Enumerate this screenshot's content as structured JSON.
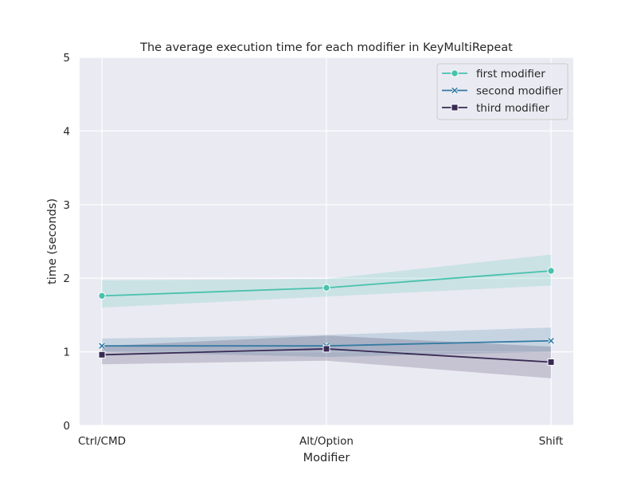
{
  "chart_data": {
    "type": "line",
    "title": "The average execution time for each modifier in KeyMultiRepeat",
    "xlabel": "Modifier",
    "ylabel": "time (seconds)",
    "categories": [
      "Ctrl/CMD",
      "Alt/Option",
      "Shift"
    ],
    "ylim": [
      0,
      5
    ],
    "yticks": [
      "0",
      "1",
      "2",
      "3",
      "4",
      "5"
    ],
    "grid": true,
    "legend_position": "top-right",
    "background": "#eaeaf2",
    "series": [
      {
        "name": "first modifier",
        "color": "#49c1ad",
        "marker": "circle",
        "values": [
          1.76,
          1.87,
          2.1
        ],
        "ci_lower": [
          1.6,
          1.75,
          1.9
        ],
        "ci_upper": [
          1.97,
          1.99,
          2.32
        ]
      },
      {
        "name": "second modifier",
        "color": "#357ba3",
        "marker": "x",
        "values": [
          1.08,
          1.08,
          1.15
        ],
        "ci_lower": [
          1.0,
          0.93,
          1.0
        ],
        "ci_upper": [
          1.18,
          1.23,
          1.33
        ]
      },
      {
        "name": "third modifier",
        "color": "#382a54",
        "marker": "square",
        "values": [
          0.96,
          1.04,
          0.86
        ],
        "ci_lower": [
          0.83,
          0.88,
          0.64
        ],
        "ci_upper": [
          1.08,
          1.22,
          1.07
        ]
      }
    ]
  }
}
